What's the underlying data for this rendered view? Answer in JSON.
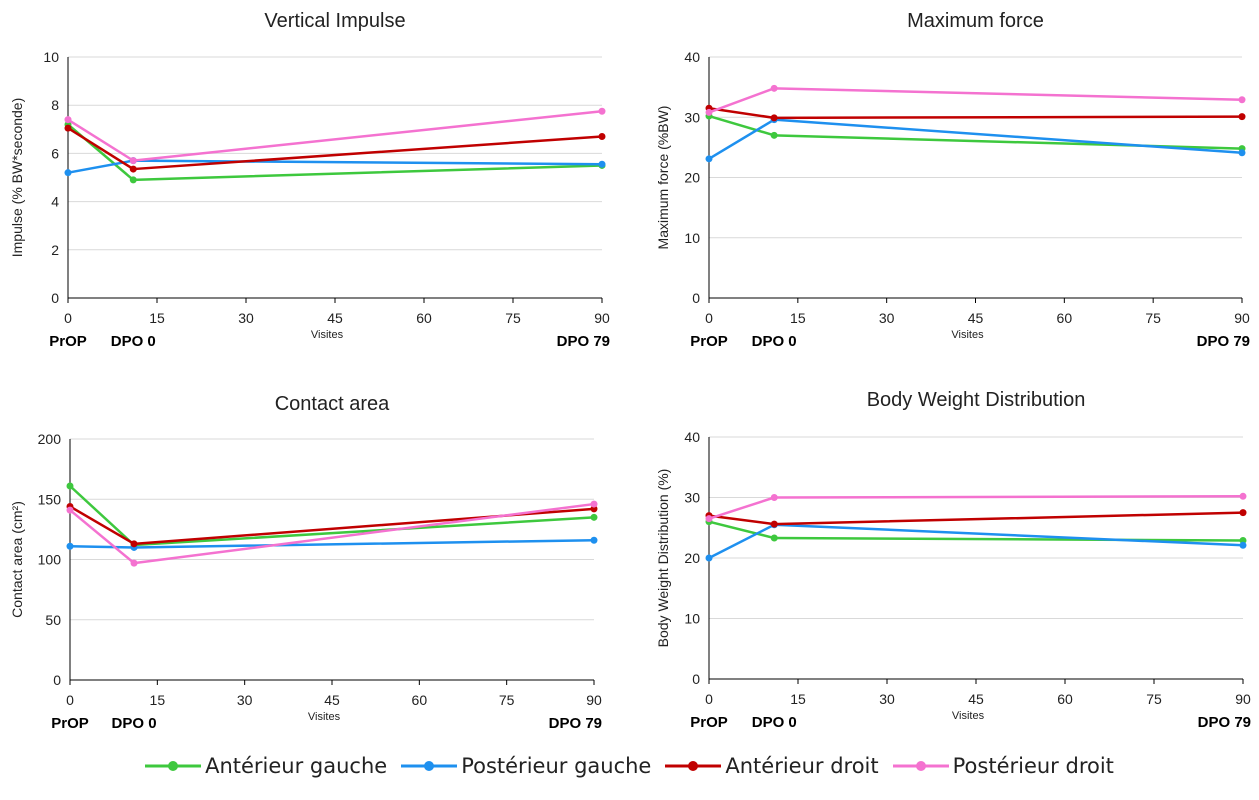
{
  "chart_data": [
    {
      "type": "line",
      "title": "Vertical Impulse",
      "xlabel": "Visites",
      "ylabel": "Impulse (% BW*seconde)",
      "xlim": [
        0,
        90
      ],
      "ylim": [
        0,
        10
      ],
      "xticks": [
        0,
        15,
        30,
        45,
        60,
        75,
        90
      ],
      "yticks": [
        0,
        2,
        4,
        6,
        8,
        10
      ],
      "grid": true,
      "visit_labels": [
        {
          "x": 0,
          "label": "PrOP"
        },
        {
          "x": 11,
          "label": "DPO 0"
        },
        {
          "x": 90,
          "label": "DPO 79"
        }
      ],
      "series": [
        {
          "name": "Antérieur gauche",
          "x": [
            0,
            11,
            90
          ],
          "values": [
            7.2,
            4.9,
            5.5
          ]
        },
        {
          "name": "Postérieur gauche",
          "x": [
            0,
            11,
            90
          ],
          "values": [
            5.2,
            5.7,
            5.55
          ]
        },
        {
          "name": "Antérieur droit",
          "x": [
            0,
            11,
            90
          ],
          "values": [
            7.05,
            5.35,
            6.7
          ]
        },
        {
          "name": "Postérieur droit",
          "x": [
            0,
            11,
            90
          ],
          "values": [
            7.4,
            5.7,
            7.75
          ]
        }
      ]
    },
    {
      "type": "line",
      "title": "Maximum force",
      "xlabel": "Visites",
      "ylabel": "Maximum force (%BW)",
      "xlim": [
        0,
        90
      ],
      "ylim": [
        0,
        40
      ],
      "xticks": [
        0,
        15,
        30,
        45,
        60,
        75,
        90
      ],
      "yticks": [
        0,
        10,
        20,
        30,
        40
      ],
      "grid": true,
      "visit_labels": [
        {
          "x": 0,
          "label": "PrOP"
        },
        {
          "x": 11,
          "label": "DPO 0"
        },
        {
          "x": 90,
          "label": "DPO 79"
        }
      ],
      "series": [
        {
          "name": "Antérieur gauche",
          "x": [
            0,
            11,
            90
          ],
          "values": [
            30.2,
            27.0,
            24.8
          ]
        },
        {
          "name": "Postérieur gauche",
          "x": [
            0,
            11,
            90
          ],
          "values": [
            23.1,
            29.6,
            24.1
          ]
        },
        {
          "name": "Antérieur droit",
          "x": [
            0,
            11,
            90
          ],
          "values": [
            31.5,
            29.9,
            30.1
          ]
        },
        {
          "name": "Postérieur droit",
          "x": [
            0,
            11,
            90
          ],
          "values": [
            30.8,
            34.8,
            32.9
          ]
        }
      ]
    },
    {
      "type": "line",
      "title": "Contact area",
      "xlabel": "Visites",
      "ylabel": "Contact area (cm²)",
      "xlim": [
        0,
        90
      ],
      "ylim": [
        0,
        200
      ],
      "xticks": [
        0,
        15,
        30,
        45,
        60,
        75,
        90
      ],
      "yticks": [
        0,
        50,
        100,
        150,
        200
      ],
      "grid": true,
      "visit_labels": [
        {
          "x": 0,
          "label": "PrOP"
        },
        {
          "x": 11,
          "label": "DPO 0"
        },
        {
          "x": 90,
          "label": "DPO 79"
        }
      ],
      "series": [
        {
          "name": "Antérieur gauche",
          "x": [
            0,
            11,
            90
          ],
          "values": [
            161,
            112,
            135
          ]
        },
        {
          "name": "Postérieur gauche",
          "x": [
            0,
            11,
            90
          ],
          "values": [
            111,
            110,
            116
          ]
        },
        {
          "name": "Antérieur droit",
          "x": [
            0,
            11,
            90
          ],
          "values": [
            144,
            113,
            142
          ]
        },
        {
          "name": "Postérieur droit",
          "x": [
            0,
            11,
            90
          ],
          "values": [
            141,
            97,
            146
          ]
        }
      ]
    },
    {
      "type": "line",
      "title": "Body Weight Distribution",
      "xlabel": "Visites",
      "ylabel": "Body Weight Distribution (%)",
      "xlim": [
        0,
        90
      ],
      "ylim": [
        0,
        40
      ],
      "xticks": [
        0,
        15,
        30,
        45,
        60,
        75,
        90
      ],
      "yticks": [
        0,
        10,
        20,
        30,
        40
      ],
      "grid": true,
      "visit_labels": [
        {
          "x": 0,
          "label": "PrOP"
        },
        {
          "x": 11,
          "label": "DPO 0"
        },
        {
          "x": 90,
          "label": "DPO 79"
        }
      ],
      "series": [
        {
          "name": "Antérieur gauche",
          "x": [
            0,
            11,
            90
          ],
          "values": [
            26.0,
            23.3,
            22.9
          ]
        },
        {
          "name": "Postérieur gauche",
          "x": [
            0,
            11,
            90
          ],
          "values": [
            20.0,
            25.5,
            22.1
          ]
        },
        {
          "name": "Antérieur droit",
          "x": [
            0,
            11,
            90
          ],
          "values": [
            27.0,
            25.6,
            27.5
          ]
        },
        {
          "name": "Postérieur droit",
          "x": [
            0,
            11,
            90
          ],
          "values": [
            26.5,
            30.0,
            30.2
          ]
        }
      ]
    }
  ],
  "legend": {
    "placement": "bottom-center",
    "items": [
      {
        "label": "Antérieur gauche",
        "color": "#3ec83e"
      },
      {
        "label": "Postérieur gauche",
        "color": "#1e90ef"
      },
      {
        "label": "Antérieur droit",
        "color": "#c00000"
      },
      {
        "label": "Postérieur droit",
        "color": "#f472d0"
      }
    ]
  }
}
